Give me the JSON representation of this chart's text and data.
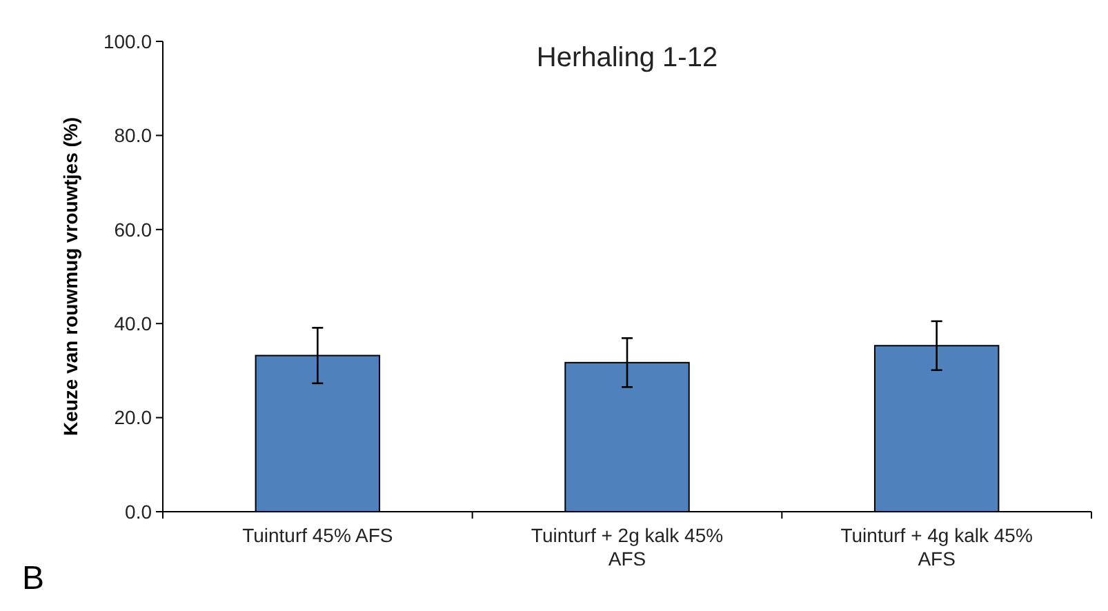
{
  "chart_data": {
    "type": "bar",
    "title": "Herhaling 1-12",
    "ylabel": "Keuze van rouwmug vrouwtjes (%)",
    "categories": [
      "Tuinturf 45% AFS",
      "Tuinturf + 2g kalk 45% AFS",
      "Tuinturf + 4g kalk 45% AFS"
    ],
    "values": [
      33.2,
      31.7,
      35.3
    ],
    "errors": [
      5.9,
      5.2,
      5.2
    ],
    "color": "#4f81bd",
    "ylim": [
      0,
      100
    ],
    "yticks": [
      {
        "value": 0,
        "label": "0.0"
      },
      {
        "value": 20,
        "label": "20.0"
      },
      {
        "value": 40,
        "label": "40.0"
      },
      {
        "value": 60,
        "label": "60.0"
      },
      {
        "value": 80,
        "label": "80.0"
      },
      {
        "value": 100,
        "label": "100.0"
      }
    ],
    "grid": false,
    "annotations": [
      "B"
    ]
  }
}
